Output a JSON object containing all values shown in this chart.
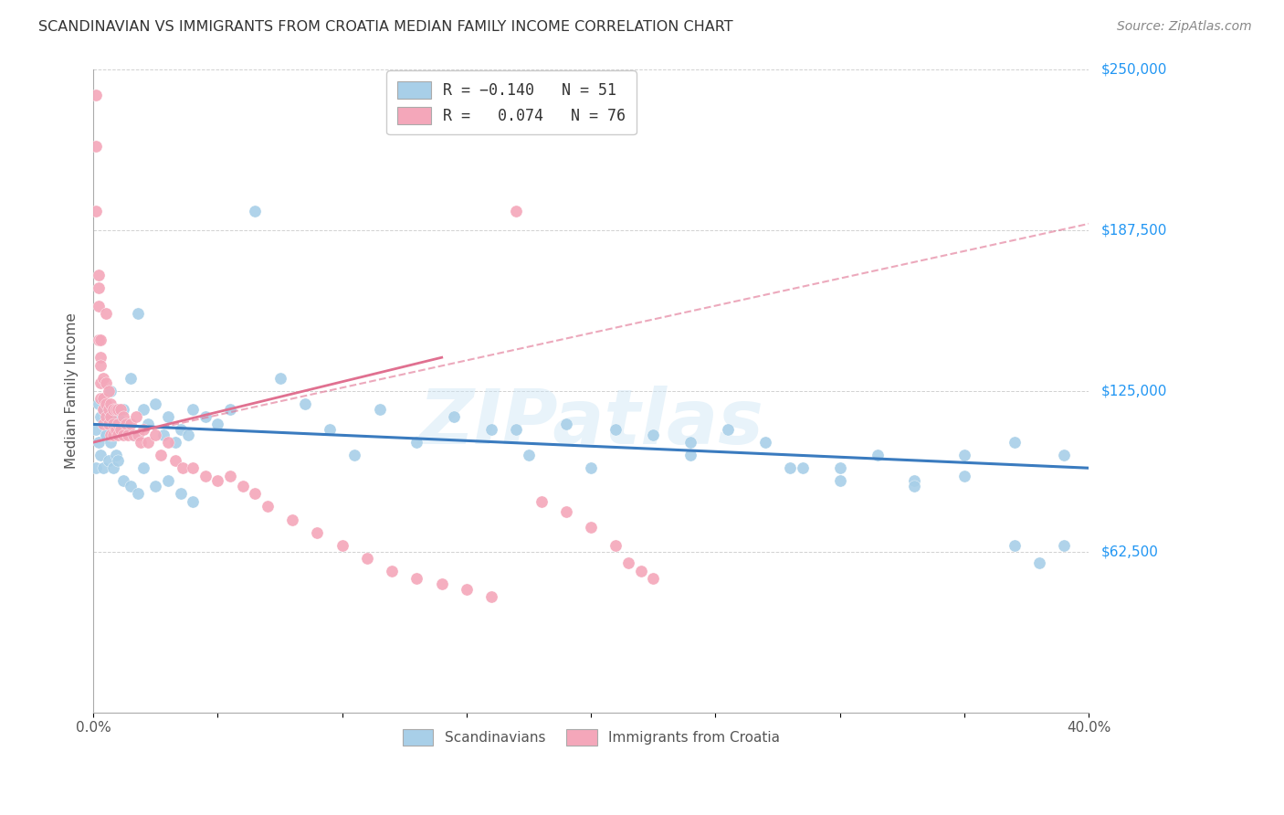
{
  "title": "SCANDINAVIAN VS IMMIGRANTS FROM CROATIA MEDIAN FAMILY INCOME CORRELATION CHART",
  "source": "Source: ZipAtlas.com",
  "ylabel": "Median Family Income",
  "yticks": [
    0,
    62500,
    125000,
    187500,
    250000
  ],
  "ytick_labels": [
    "",
    "$62,500",
    "$125,000",
    "$187,500",
    "$250,000"
  ],
  "xmin": 0.0,
  "xmax": 0.4,
  "ymin": 0,
  "ymax": 250000,
  "watermark": "ZIPatlas",
  "blue_color": "#a8cfe8",
  "pink_color": "#f4a7ba",
  "blue_line_color": "#3a7bbf",
  "pink_line_color": "#e07090",
  "label_scandinavians": "Scandinavians",
  "label_croatia": "Immigrants from Croatia",
  "scandinavian_x": [
    0.001,
    0.002,
    0.003,
    0.004,
    0.005,
    0.006,
    0.007,
    0.008,
    0.009,
    0.01,
    0.011,
    0.012,
    0.013,
    0.015,
    0.016,
    0.018,
    0.02,
    0.022,
    0.025,
    0.028,
    0.03,
    0.033,
    0.035,
    0.038,
    0.04,
    0.045,
    0.05,
    0.055,
    0.065,
    0.075,
    0.085,
    0.095,
    0.105,
    0.115,
    0.13,
    0.145,
    0.16,
    0.175,
    0.19,
    0.21,
    0.225,
    0.24,
    0.255,
    0.27,
    0.285,
    0.3,
    0.315,
    0.33,
    0.35,
    0.37,
    0.39
  ],
  "scandinavian_y": [
    110000,
    120000,
    115000,
    118000,
    108000,
    115000,
    125000,
    112000,
    118000,
    115000,
    110000,
    118000,
    112000,
    130000,
    108000,
    155000,
    118000,
    112000,
    120000,
    108000,
    115000,
    105000,
    110000,
    108000,
    118000,
    115000,
    112000,
    118000,
    195000,
    130000,
    120000,
    110000,
    100000,
    118000,
    105000,
    115000,
    110000,
    100000,
    112000,
    110000,
    108000,
    100000,
    110000,
    105000,
    95000,
    95000,
    100000,
    90000,
    100000,
    105000,
    100000
  ],
  "scandinavian_low_x": [
    0.001,
    0.002,
    0.003,
    0.004,
    0.005,
    0.006,
    0.007,
    0.008,
    0.009,
    0.01,
    0.012,
    0.015,
    0.018,
    0.02,
    0.025,
    0.03,
    0.035,
    0.04
  ],
  "scandinavian_low_y": [
    95000,
    105000,
    100000,
    95000,
    108000,
    98000,
    105000,
    95000,
    100000,
    98000,
    90000,
    88000,
    85000,
    95000,
    88000,
    90000,
    85000,
    82000
  ],
  "scandinavian_far_x": [
    0.17,
    0.2,
    0.24,
    0.28,
    0.3,
    0.33,
    0.35,
    0.37,
    0.38,
    0.39
  ],
  "scandinavian_far_y": [
    110000,
    95000,
    105000,
    95000,
    90000,
    88000,
    92000,
    65000,
    58000,
    65000
  ],
  "croatia_x": [
    0.001,
    0.001,
    0.001,
    0.002,
    0.002,
    0.002,
    0.002,
    0.003,
    0.003,
    0.003,
    0.003,
    0.003,
    0.004,
    0.004,
    0.004,
    0.004,
    0.005,
    0.005,
    0.005,
    0.005,
    0.006,
    0.006,
    0.006,
    0.007,
    0.007,
    0.007,
    0.008,
    0.008,
    0.008,
    0.009,
    0.009,
    0.01,
    0.01,
    0.01,
    0.011,
    0.011,
    0.012,
    0.012,
    0.013,
    0.014,
    0.015,
    0.016,
    0.017,
    0.018,
    0.019,
    0.02,
    0.022,
    0.025,
    0.027,
    0.03,
    0.033,
    0.036,
    0.04,
    0.045,
    0.05,
    0.055,
    0.06,
    0.065,
    0.07,
    0.08,
    0.09,
    0.1,
    0.11,
    0.12,
    0.13,
    0.14,
    0.15,
    0.16,
    0.17,
    0.18,
    0.19,
    0.2,
    0.21,
    0.215,
    0.22,
    0.225
  ],
  "croatia_y": [
    240000,
    220000,
    195000,
    170000,
    165000,
    158000,
    145000,
    145000,
    138000,
    135000,
    128000,
    122000,
    130000,
    122000,
    118000,
    112000,
    155000,
    128000,
    120000,
    115000,
    125000,
    118000,
    112000,
    120000,
    115000,
    108000,
    118000,
    112000,
    108000,
    118000,
    110000,
    118000,
    112000,
    108000,
    118000,
    110000,
    115000,
    108000,
    112000,
    108000,
    112000,
    108000,
    115000,
    108000,
    105000,
    110000,
    105000,
    108000,
    100000,
    105000,
    98000,
    95000,
    95000,
    92000,
    90000,
    92000,
    88000,
    85000,
    80000,
    75000,
    70000,
    65000,
    60000,
    55000,
    52000,
    50000,
    48000,
    45000,
    195000,
    82000,
    78000,
    72000,
    65000,
    58000,
    55000,
    52000
  ]
}
